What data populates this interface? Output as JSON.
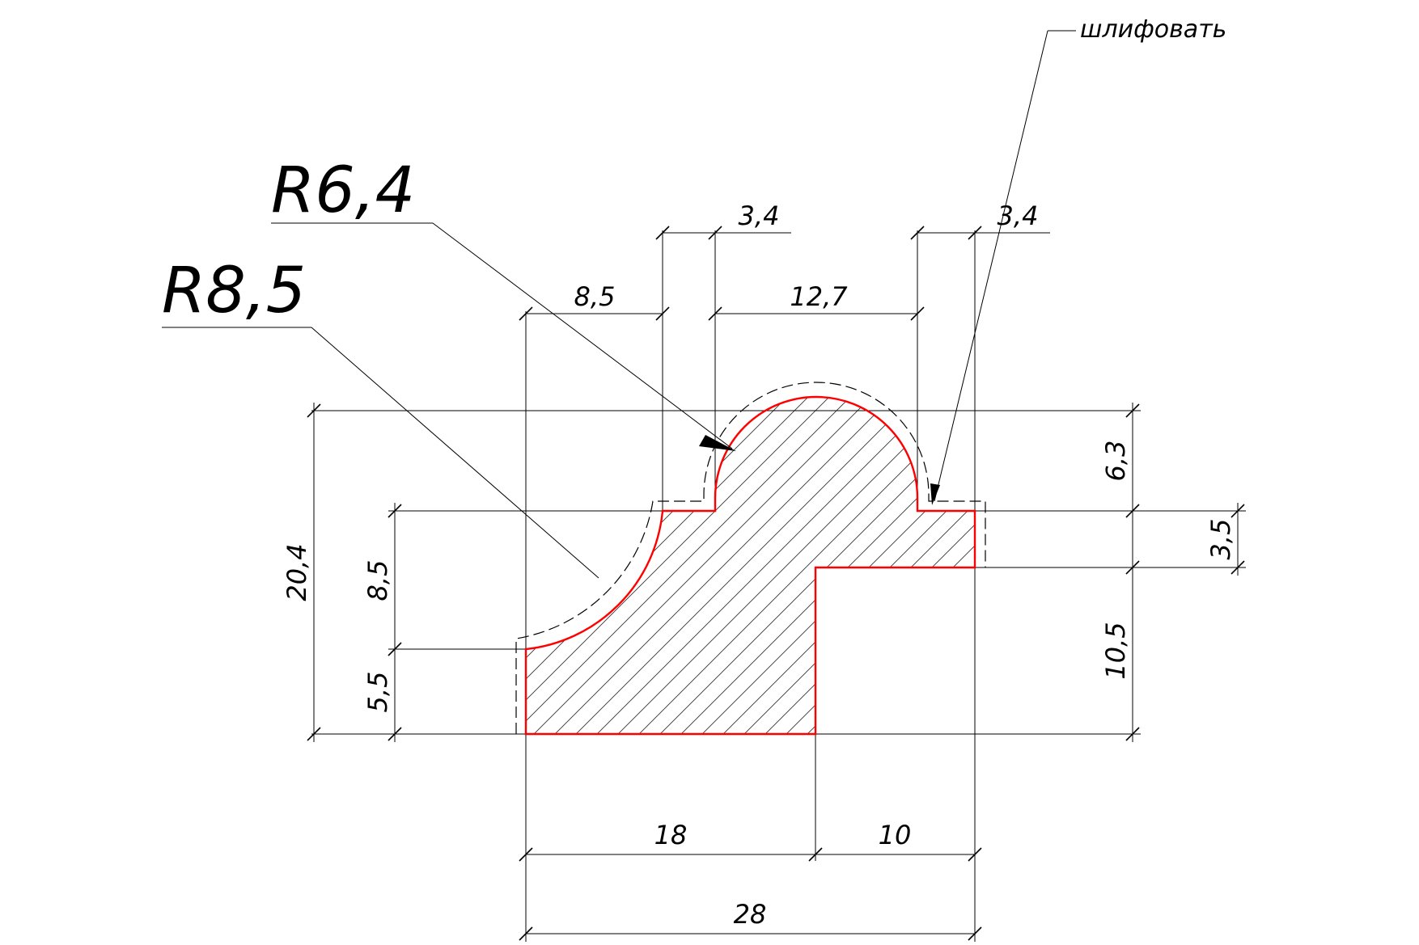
{
  "drawing": {
    "radius_labels": {
      "r_small": "R6,4",
      "r_large": "R8,5"
    },
    "note": "шлифовать",
    "dimensions": {
      "top_left_width": "3,4",
      "top_right_width": "3,4",
      "left_width": "8,5",
      "middle_width": "12,7",
      "total_height": "20,4",
      "left_upper_height": "8,5",
      "left_lower_height": "5,5",
      "right_top_height": "6,3",
      "right_mid_height": "3,5",
      "right_lower_height": "10,5",
      "bottom_left_width": "18",
      "bottom_right_width": "10",
      "overall_width": "28"
    },
    "colors": {
      "profile_outline": "#ff0000",
      "lines": "#000000",
      "hatch": "#333333"
    }
  }
}
